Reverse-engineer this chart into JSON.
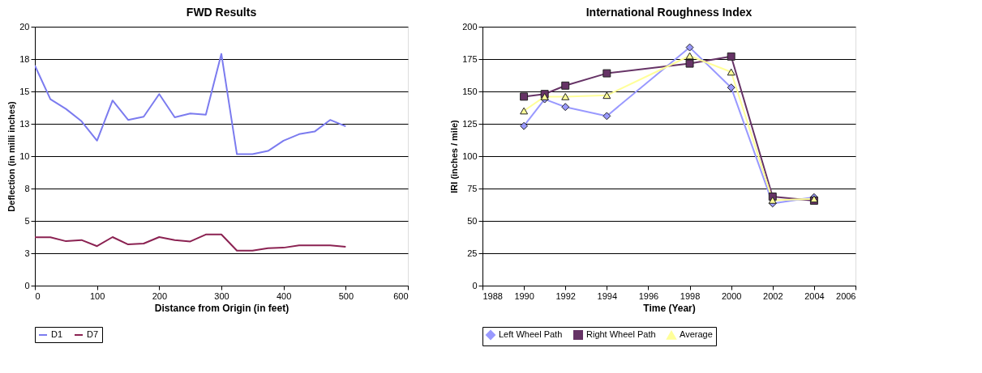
{
  "chart_data": [
    {
      "type": "line",
      "title": "FWD Results",
      "xlabel": "Distance from Origin (in feet)",
      "ylabel": "Deflection (in milli inches)",
      "x": [
        0,
        25,
        50,
        75,
        100,
        125,
        150,
        175,
        200,
        225,
        250,
        275,
        300,
        325,
        350,
        375,
        400,
        425,
        450,
        475,
        500
      ],
      "series": [
        {
          "name": "D1",
          "color": "#7b7bef",
          "values": [
            17.0,
            14.4,
            13.65,
            12.7,
            11.2,
            14.3,
            12.8,
            13.05,
            14.8,
            13.0,
            13.3,
            13.2,
            17.9,
            10.15,
            10.15,
            10.4,
            11.2,
            11.7,
            11.9,
            12.8,
            12.3
          ]
        },
        {
          "name": "D7",
          "color": "#8b2252",
          "values": [
            3.73,
            3.73,
            3.43,
            3.52,
            3.05,
            3.75,
            3.18,
            3.25,
            3.75,
            3.52,
            3.41,
            3.95,
            3.95,
            2.7,
            2.7,
            2.89,
            2.93,
            3.11,
            3.11,
            3.11,
            3.0
          ]
        }
      ],
      "xlim": [
        0,
        600
      ],
      "xticks": [
        0,
        100,
        200,
        300,
        400,
        500,
        600
      ],
      "ylim": [
        0,
        20
      ],
      "yticks": [
        0,
        {
          "value": 2.5,
          "label": "3"
        },
        5,
        {
          "value": 7.5,
          "label": "8"
        },
        10,
        {
          "value": 12.5,
          "label": "13"
        },
        15,
        {
          "value": 17.5,
          "label": "18"
        },
        20
      ],
      "grid": "y",
      "legend": "bottom",
      "marker": "none",
      "line_style": "solid"
    },
    {
      "type": "line",
      "title": "International Roughness Index",
      "xlabel": "Time (Year)",
      "ylabel": "IRI (inches / mile)",
      "x": [
        1990,
        1991,
        1992,
        1994,
        1998,
        2000,
        2002,
        2004
      ],
      "series": [
        {
          "name": "Left Wheel Path",
          "color": "#9999ff",
          "marker": "diamond",
          "values": [
            123.3,
            144,
            138,
            131,
            184,
            153,
            63.5,
            68.3
          ]
        },
        {
          "name": "Right Wheel Path",
          "color": "#663366",
          "marker": "square",
          "values": [
            146,
            148,
            154.5,
            164,
            171.5,
            177,
            68.8,
            65.6
          ]
        },
        {
          "name": "Average",
          "color": "#ffff99",
          "marker": "triangle",
          "values": [
            135,
            146,
            146,
            147,
            177.5,
            165,
            66,
            67
          ]
        }
      ],
      "xlim": [
        1988,
        2006
      ],
      "xticks": [
        1988,
        1990,
        1992,
        1994,
        1996,
        1998,
        2000,
        2002,
        2004,
        2006
      ],
      "ylim": [
        0,
        200
      ],
      "yticks": [
        0,
        25,
        50,
        75,
        100,
        125,
        150,
        175,
        200
      ],
      "grid": "y",
      "legend": "bottom",
      "line_style": "solid"
    }
  ]
}
